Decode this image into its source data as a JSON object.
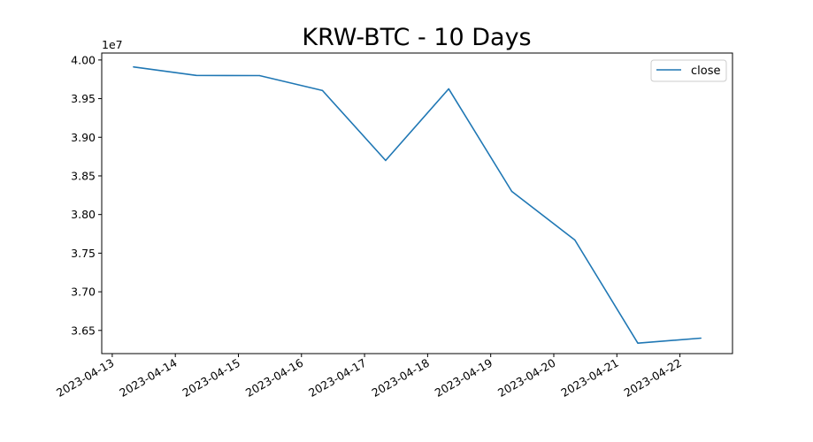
{
  "chart_data": {
    "type": "line",
    "title": "KRW-BTC - 10 Days",
    "xlabel": "",
    "ylabel": "",
    "y_offset_label": "1e7",
    "x": [
      "2023-04-13 08:00",
      "2023-04-14 08:00",
      "2023-04-15 08:00",
      "2023-04-16 08:00",
      "2023-04-17 08:00",
      "2023-04-18 08:00",
      "2023-04-19 08:00",
      "2023-04-20 08:00",
      "2023-04-21 08:00",
      "2023-04-22 08:00"
    ],
    "series": [
      {
        "name": "close",
        "color": "#1f77b4",
        "values": [
          39910000,
          39800000,
          39798000,
          39605000,
          38700000,
          39627000,
          38300000,
          37670000,
          36335000,
          36400000
        ]
      }
    ],
    "xlim": [
      "2023-04-12 20:00",
      "2023-04-22 20:00"
    ],
    "ylim": [
      36200000,
      40090000
    ],
    "x_ticks": [
      "2023-04-13",
      "2023-04-14",
      "2023-04-15",
      "2023-04-16",
      "2023-04-17",
      "2023-04-18",
      "2023-04-19",
      "2023-04-20",
      "2023-04-21",
      "2023-04-22"
    ],
    "y_ticks": [
      {
        "value": 36500000,
        "label": "3.65"
      },
      {
        "value": 37000000,
        "label": "3.70"
      },
      {
        "value": 37500000,
        "label": "3.75"
      },
      {
        "value": 38000000,
        "label": "3.80"
      },
      {
        "value": 38500000,
        "label": "3.85"
      },
      {
        "value": 39000000,
        "label": "3.90"
      },
      {
        "value": 39500000,
        "label": "3.95"
      },
      {
        "value": 40000000,
        "label": "4.00"
      }
    ],
    "grid": false,
    "legend_position": "top-right"
  }
}
